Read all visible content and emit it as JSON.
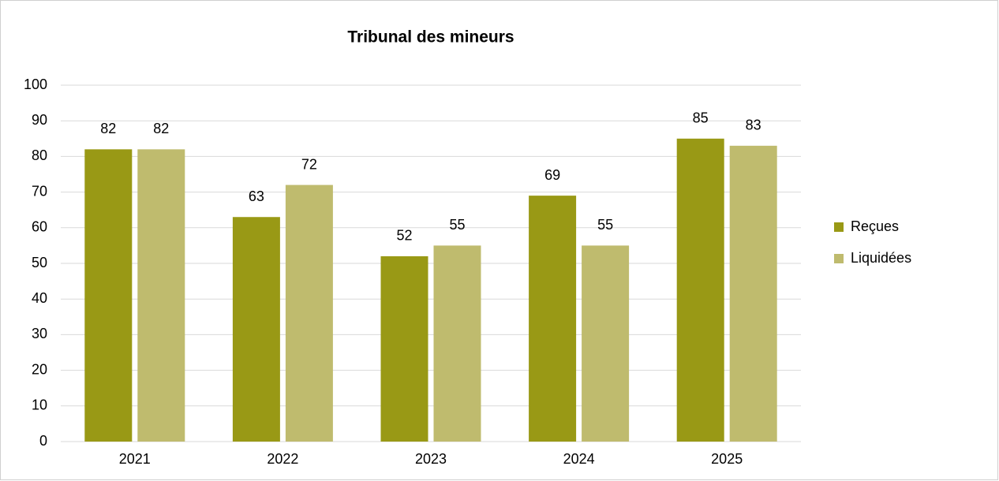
{
  "chart_data": {
    "type": "bar",
    "title": "Tribunal des mineurs",
    "categories": [
      "2021",
      "2022",
      "2023",
      "2024",
      "2025"
    ],
    "series": [
      {
        "name": "Reçues",
        "color": "#999915",
        "values": [
          82,
          63,
          52,
          69,
          85
        ]
      },
      {
        "name": "Liquidées",
        "color": "#bfbb6e",
        "values": [
          82,
          72,
          55,
          55,
          83
        ]
      }
    ],
    "ylim": [
      0,
      100
    ],
    "yticks": [
      0,
      10,
      20,
      30,
      40,
      50,
      60,
      70,
      80,
      90,
      100
    ],
    "grid": true,
    "legend": "right"
  }
}
